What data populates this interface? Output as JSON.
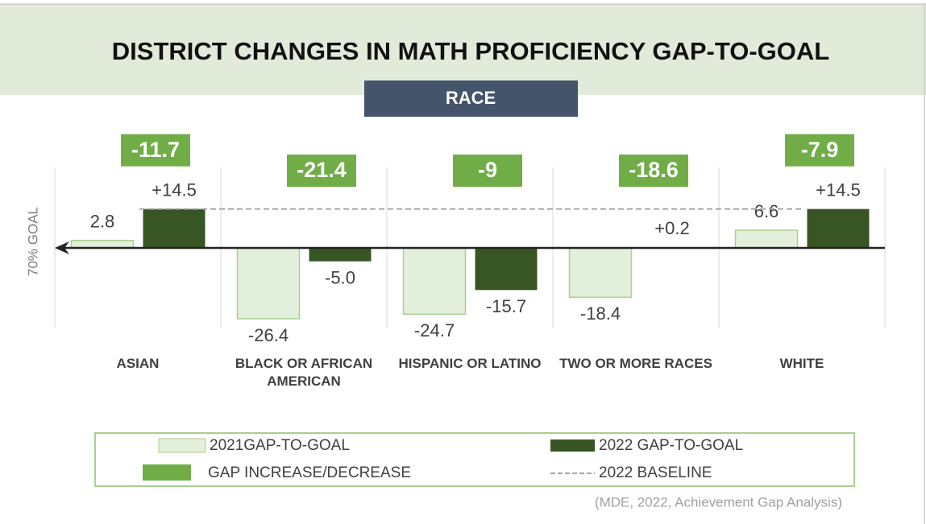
{
  "chart_data": {
    "type": "bar",
    "title": "DISTRICT CHANGES IN MATH PROFICIENCY GAP-TO-GOAL",
    "subtitle": "RACE",
    "y_axis_label": "70% GOAL",
    "categories": [
      "ASIAN",
      "BLACK OR AFRICAN AMERICAN",
      "HISPANIC OR LATINO",
      "TWO OR MORE RACES",
      "WHITE"
    ],
    "series": [
      {
        "name": "2021GAP-TO-GOAL",
        "color": "#e2efda",
        "stroke": "#a9d08e",
        "values": [
          2.8,
          -26.4,
          -24.7,
          -18.4,
          6.6
        ]
      },
      {
        "name": "2022 GAP-TO-GOAL",
        "color": "#375623",
        "values": [
          14.5,
          -5.0,
          -15.7,
          0.2,
          14.5
        ],
        "value_labels": [
          "+14.5",
          "-5.0",
          "-15.7",
          "+0.2",
          "+14.5"
        ]
      },
      {
        "name": "GAP INCREASE/DECREASE",
        "color": "#70ad47",
        "values": [
          -11.7,
          -21.4,
          -9,
          -18.6,
          -7.9
        ]
      }
    ],
    "baseline": {
      "name": "2022 BASELINE",
      "value": 14.5,
      "color": "#a6a6a6"
    },
    "ylim": [
      -30,
      30
    ],
    "source": "(MDE, 2022, Achievement Gap Analysis)"
  }
}
